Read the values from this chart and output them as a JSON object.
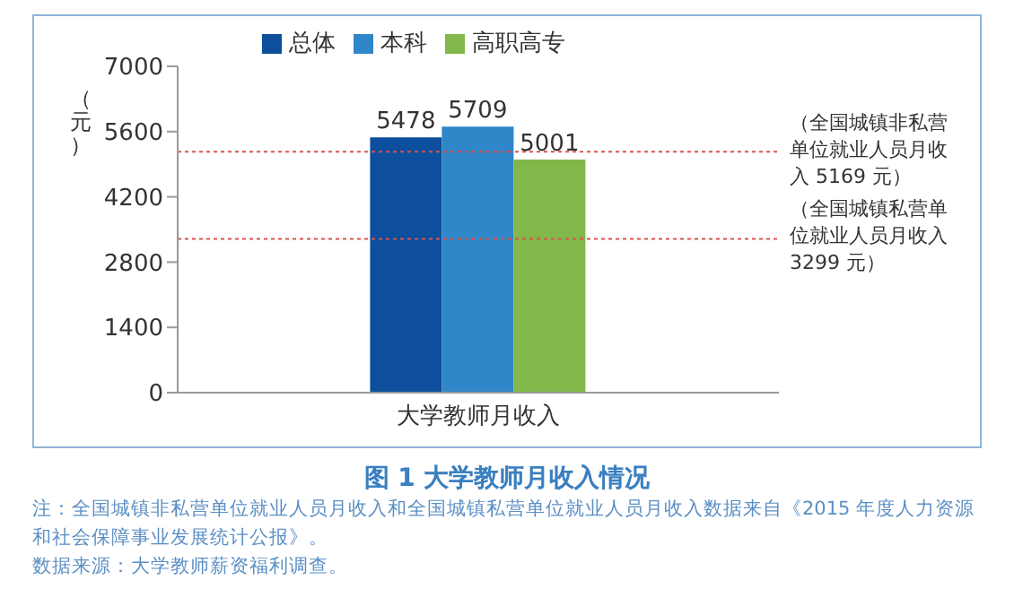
{
  "chart_data": {
    "type": "bar",
    "title": "图 1 大学教师月收入情况",
    "ylabel": "（元）",
    "categories": [
      "大学教师月收入"
    ],
    "series": [
      {
        "name": "总体",
        "color": "#0d4f9c",
        "values": [
          5478
        ]
      },
      {
        "name": "本科",
        "color": "#2f86c8",
        "values": [
          5709
        ]
      },
      {
        "name": "高职高专",
        "color": "#82b84a",
        "values": [
          5001
        ]
      }
    ],
    "ylim": [
      0,
      7000
    ],
    "yticks": [
      0,
      1400,
      2800,
      4200,
      5600,
      7000
    ],
    "grid": false,
    "legend": "top",
    "data_labels": true,
    "ref_lines": [
      {
        "axis": "y",
        "value": 5169,
        "label": "（全国城镇非私营单位就业人员月收入 5169 元）",
        "color": "#d9534f",
        "line_style": "dotted"
      },
      {
        "axis": "y",
        "value": 3299,
        "label": "（全国城镇私营单位就业人员月收入 3299 元）",
        "color": "#d9534f",
        "line_style": "dotted"
      }
    ],
    "annotations": [
      "注：全国城镇非私营单位就业人员月收入和全国城镇私营单位就业人员月收入数据来自《2015 年度人力资源和社会保障事业发展统计公报》。",
      "数据来源：大学教师薪资福利调查。"
    ]
  }
}
